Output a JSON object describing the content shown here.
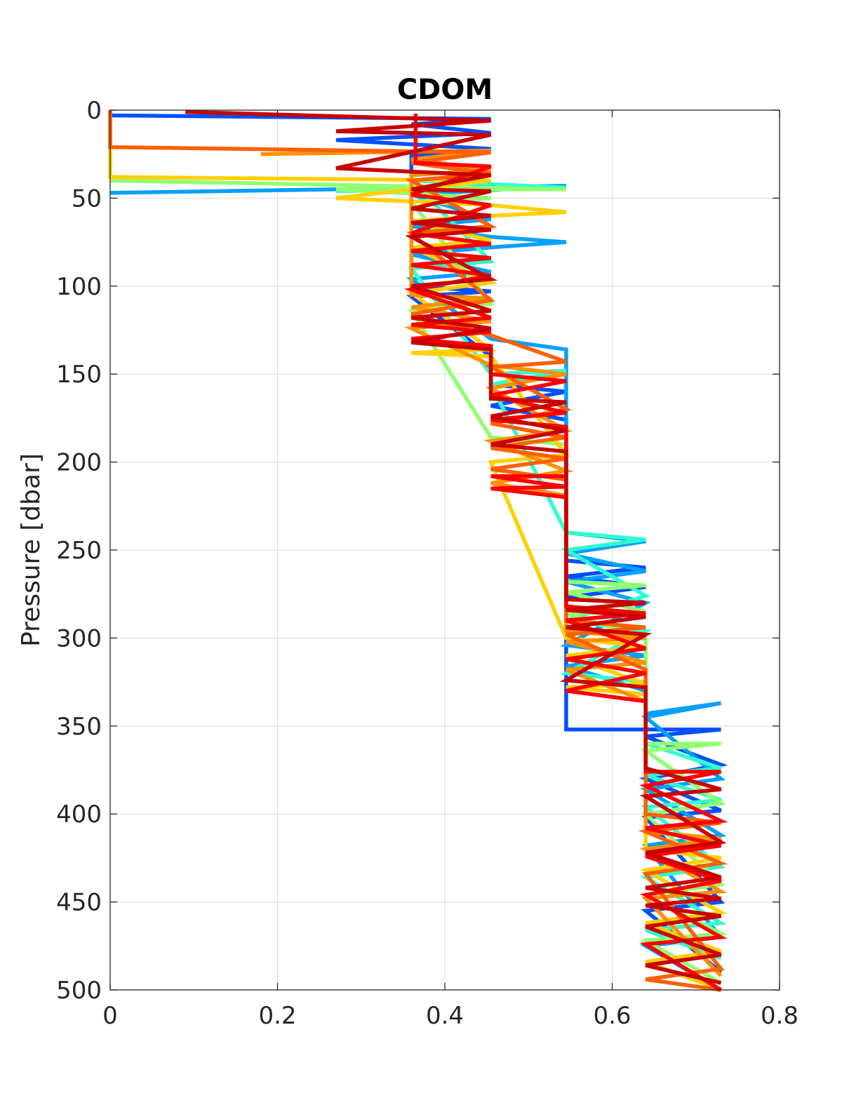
{
  "chart_data": {
    "type": "line",
    "title": "CDOM",
    "xlabel": "",
    "ylabel": "Pressure [dbar]",
    "xlim": [
      0,
      0.8
    ],
    "ylim": [
      0,
      500
    ],
    "y_reversed": true,
    "grid": true,
    "x_ticks": [
      "0",
      "0.2",
      "0.4",
      "0.6",
      "0.8"
    ],
    "y_ticks": [
      "0",
      "50",
      "100",
      "150",
      "200",
      "250",
      "300",
      "350",
      "400",
      "450",
      "500"
    ],
    "x_tick_values": [
      0,
      0.2,
      0.4,
      0.6,
      0.8
    ],
    "y_tick_values": [
      0,
      50,
      100,
      150,
      200,
      250,
      300,
      350,
      400,
      450,
      500
    ],
    "series": [
      {
        "color": "#0050ff",
        "points": [
          [
            0,
            3
          ],
          [
            0.455,
            5
          ],
          [
            0.36,
            8
          ],
          [
            0.455,
            13
          ],
          [
            0.27,
            17
          ],
          [
            0.455,
            22
          ],
          [
            0.36,
            26
          ],
          [
            0.36,
            100
          ],
          [
            0.455,
            103
          ],
          [
            0.36,
            106
          ],
          [
            0.455,
            140
          ],
          [
            0.455,
            156
          ],
          [
            0.545,
            160
          ],
          [
            0.455,
            168
          ],
          [
            0.545,
            176
          ],
          [
            0.545,
            256
          ],
          [
            0.64,
            260
          ],
          [
            0.545,
            265
          ],
          [
            0.64,
            271
          ],
          [
            0.545,
            277
          ],
          [
            0.545,
            352
          ],
          [
            0.73,
            352
          ],
          [
            0.64,
            356
          ],
          [
            0.73,
            372
          ],
          [
            0.64,
            380
          ],
          [
            0.73,
            398
          ],
          [
            0.64,
            402
          ],
          [
            0.73,
            450
          ],
          [
            0.64,
            455
          ],
          [
            0.73,
            490
          ]
        ]
      },
      {
        "color": "#00a0ff",
        "points": [
          [
            0,
            47
          ],
          [
            0.545,
            43
          ],
          [
            0.36,
            48
          ],
          [
            0.455,
            62
          ],
          [
            0.36,
            66
          ],
          [
            0.455,
            72
          ],
          [
            0.545,
            75
          ],
          [
            0.455,
            78
          ],
          [
            0.36,
            82
          ],
          [
            0.455,
            92
          ],
          [
            0.36,
            96
          ],
          [
            0.455,
            130
          ],
          [
            0.545,
            136
          ],
          [
            0.545,
            240
          ],
          [
            0.64,
            245
          ],
          [
            0.545,
            252
          ],
          [
            0.64,
            262
          ],
          [
            0.545,
            268
          ],
          [
            0.64,
            280
          ],
          [
            0.545,
            304
          ],
          [
            0.64,
            310
          ],
          [
            0.545,
            316
          ],
          [
            0.64,
            330
          ],
          [
            0.64,
            343
          ],
          [
            0.73,
            337
          ],
          [
            0.64,
            345
          ],
          [
            0.73,
            380
          ],
          [
            0.64,
            386
          ],
          [
            0.73,
            412
          ],
          [
            0.64,
            418
          ],
          [
            0.73,
            470
          ],
          [
            0.64,
            475
          ],
          [
            0.73,
            500
          ]
        ]
      },
      {
        "color": "#30ffd0",
        "points": [
          [
            0.27,
            46
          ],
          [
            0.545,
            44
          ],
          [
            0.36,
            40
          ],
          [
            0.455,
            86
          ],
          [
            0.36,
            90
          ],
          [
            0.455,
            150
          ],
          [
            0.545,
            148
          ],
          [
            0.455,
            156
          ],
          [
            0.545,
            240
          ],
          [
            0.64,
            244
          ],
          [
            0.545,
            250
          ],
          [
            0.64,
            276
          ],
          [
            0.545,
            290
          ],
          [
            0.64,
            296
          ],
          [
            0.545,
            320
          ],
          [
            0.64,
            325
          ],
          [
            0.64,
            360
          ],
          [
            0.73,
            374
          ],
          [
            0.64,
            378
          ],
          [
            0.73,
            392
          ],
          [
            0.64,
            396
          ],
          [
            0.73,
            430
          ],
          [
            0.64,
            436
          ],
          [
            0.73,
            462
          ],
          [
            0.64,
            466
          ],
          [
            0.73,
            482
          ]
        ]
      },
      {
        "color": "#90ff70",
        "points": [
          [
            0,
            40
          ],
          [
            0.545,
            45
          ],
          [
            0.27,
            45
          ],
          [
            0.455,
            50
          ],
          [
            0.36,
            52
          ],
          [
            0.455,
            110
          ],
          [
            0.36,
            114
          ],
          [
            0.455,
            186
          ],
          [
            0.545,
            190
          ],
          [
            0.545,
            268
          ],
          [
            0.64,
            270
          ],
          [
            0.545,
            274
          ],
          [
            0.64,
            285
          ],
          [
            0.545,
            286
          ],
          [
            0.64,
            300
          ],
          [
            0.64,
            360
          ],
          [
            0.73,
            360
          ],
          [
            0.64,
            364
          ],
          [
            0.73,
            394
          ],
          [
            0.64,
            400
          ],
          [
            0.73,
            440
          ],
          [
            0.64,
            446
          ],
          [
            0.73,
            468
          ],
          [
            0.64,
            472
          ],
          [
            0.73,
            496
          ]
        ]
      },
      {
        "color": "#ffd000",
        "points": [
          [
            0,
            0
          ],
          [
            0,
            38
          ],
          [
            0.455,
            40
          ],
          [
            0.27,
            50
          ],
          [
            0.455,
            54
          ],
          [
            0.545,
            58
          ],
          [
            0.455,
            60
          ],
          [
            0.36,
            63
          ],
          [
            0.455,
            74
          ],
          [
            0.36,
            78
          ],
          [
            0.455,
            98
          ],
          [
            0.36,
            104
          ],
          [
            0.455,
            136
          ],
          [
            0.36,
            138
          ],
          [
            0.455,
            140
          ],
          [
            0.545,
            196
          ],
          [
            0.455,
            200
          ],
          [
            0.545,
            300
          ],
          [
            0.64,
            305
          ],
          [
            0.545,
            310
          ],
          [
            0.64,
            326
          ],
          [
            0.545,
            328
          ],
          [
            0.64,
            332
          ],
          [
            0.64,
            420
          ],
          [
            0.73,
            425
          ],
          [
            0.64,
            432
          ],
          [
            0.73,
            456
          ],
          [
            0.64,
            462
          ],
          [
            0.73,
            478
          ],
          [
            0.64,
            484
          ],
          [
            0.73,
            500
          ]
        ]
      },
      {
        "color": "#ff9000",
        "points": [
          [
            0.18,
            25
          ],
          [
            0.455,
            23
          ],
          [
            0.36,
            28
          ],
          [
            0.455,
            34
          ],
          [
            0.36,
            37
          ],
          [
            0.36,
            105
          ],
          [
            0.455,
            107
          ],
          [
            0.36,
            112
          ],
          [
            0.455,
            120
          ],
          [
            0.36,
            124
          ],
          [
            0.455,
            145
          ],
          [
            0.545,
            150
          ],
          [
            0.455,
            158
          ],
          [
            0.545,
            182
          ],
          [
            0.455,
            188
          ],
          [
            0.545,
            205
          ],
          [
            0.455,
            212
          ],
          [
            0.545,
            219
          ],
          [
            0.545,
            296
          ],
          [
            0.64,
            300
          ],
          [
            0.545,
            302
          ],
          [
            0.64,
            314
          ],
          [
            0.545,
            318
          ],
          [
            0.64,
            336
          ],
          [
            0.64,
            410
          ],
          [
            0.73,
            414
          ],
          [
            0.64,
            420
          ],
          [
            0.73,
            444
          ],
          [
            0.64,
            448
          ],
          [
            0.73,
            492
          ]
        ]
      },
      {
        "color": "#ff6000",
        "points": [
          [
            0,
            0
          ],
          [
            0,
            21
          ],
          [
            0.455,
            24
          ],
          [
            0.36,
            30
          ],
          [
            0.455,
            36
          ],
          [
            0.36,
            40
          ],
          [
            0.455,
            66
          ],
          [
            0.36,
            70
          ],
          [
            0.455,
            108
          ],
          [
            0.36,
            116
          ],
          [
            0.455,
            128
          ],
          [
            0.545,
            143
          ],
          [
            0.455,
            146
          ],
          [
            0.545,
            170
          ],
          [
            0.455,
            178
          ],
          [
            0.545,
            186
          ],
          [
            0.455,
            192
          ],
          [
            0.545,
            198
          ],
          [
            0.455,
            204
          ],
          [
            0.545,
            210
          ],
          [
            0.545,
            290
          ],
          [
            0.64,
            294
          ],
          [
            0.545,
            298
          ],
          [
            0.64,
            318
          ],
          [
            0.64,
            400
          ],
          [
            0.73,
            405
          ],
          [
            0.64,
            410
          ],
          [
            0.73,
            428
          ],
          [
            0.64,
            434
          ],
          [
            0.73,
            488
          ],
          [
            0.64,
            494
          ],
          [
            0.73,
            500
          ]
        ]
      },
      {
        "color": "#ff0000",
        "points": [
          [
            0.365,
            2
          ],
          [
            0.365,
            30
          ],
          [
            0.455,
            32
          ],
          [
            0.36,
            48
          ],
          [
            0.455,
            54
          ],
          [
            0.36,
            70
          ],
          [
            0.455,
            76
          ],
          [
            0.36,
            80
          ],
          [
            0.455,
            84
          ],
          [
            0.36,
            88
          ],
          [
            0.455,
            94
          ],
          [
            0.36,
            102
          ],
          [
            0.455,
            118
          ],
          [
            0.36,
            122
          ],
          [
            0.455,
            126
          ],
          [
            0.36,
            130
          ],
          [
            0.455,
            134
          ],
          [
            0.455,
            150
          ],
          [
            0.545,
            154
          ],
          [
            0.455,
            162
          ],
          [
            0.545,
            172
          ],
          [
            0.455,
            176
          ],
          [
            0.545,
            180
          ],
          [
            0.545,
            208
          ],
          [
            0.455,
            208
          ],
          [
            0.545,
            214
          ],
          [
            0.455,
            215
          ],
          [
            0.545,
            220
          ],
          [
            0.545,
            282
          ],
          [
            0.64,
            286
          ],
          [
            0.545,
            290
          ],
          [
            0.64,
            306
          ],
          [
            0.545,
            312
          ],
          [
            0.64,
            320
          ],
          [
            0.545,
            330
          ],
          [
            0.64,
            336
          ],
          [
            0.64,
            376
          ],
          [
            0.73,
            376
          ],
          [
            0.64,
            384
          ],
          [
            0.73,
            404
          ],
          [
            0.64,
            408
          ],
          [
            0.73,
            418
          ],
          [
            0.64,
            424
          ],
          [
            0.73,
            438
          ],
          [
            0.64,
            446
          ],
          [
            0.73,
            470
          ],
          [
            0.64,
            474
          ],
          [
            0.73,
            500
          ]
        ]
      },
      {
        "color": "#c80000",
        "points": [
          [
            0.09,
            1
          ],
          [
            0.455,
            6
          ],
          [
            0.27,
            12
          ],
          [
            0.455,
            14
          ],
          [
            0.27,
            33
          ],
          [
            0.455,
            37
          ],
          [
            0.36,
            45
          ],
          [
            0.455,
            46
          ],
          [
            0.36,
            56
          ],
          [
            0.455,
            60
          ],
          [
            0.36,
            64
          ],
          [
            0.455,
            68
          ],
          [
            0.36,
            72
          ],
          [
            0.455,
            96
          ],
          [
            0.36,
            100
          ],
          [
            0.455,
            114
          ],
          [
            0.36,
            118
          ],
          [
            0.455,
            124
          ],
          [
            0.36,
            132
          ],
          [
            0.455,
            136
          ],
          [
            0.455,
            164
          ],
          [
            0.545,
            166
          ],
          [
            0.455,
            174
          ],
          [
            0.545,
            182
          ],
          [
            0.455,
            190
          ],
          [
            0.545,
            194
          ],
          [
            0.545,
            278
          ],
          [
            0.64,
            280
          ],
          [
            0.545,
            284
          ],
          [
            0.64,
            288
          ],
          [
            0.545,
            294
          ],
          [
            0.64,
            298
          ],
          [
            0.545,
            324
          ],
          [
            0.64,
            328
          ],
          [
            0.64,
            374
          ],
          [
            0.73,
            386
          ],
          [
            0.64,
            390
          ],
          [
            0.73,
            416
          ],
          [
            0.64,
            422
          ],
          [
            0.73,
            436
          ],
          [
            0.64,
            442
          ],
          [
            0.73,
            448
          ],
          [
            0.64,
            452
          ],
          [
            0.73,
            458
          ],
          [
            0.64,
            464
          ],
          [
            0.73,
            480
          ],
          [
            0.64,
            486
          ],
          [
            0.73,
            496
          ]
        ]
      }
    ]
  }
}
